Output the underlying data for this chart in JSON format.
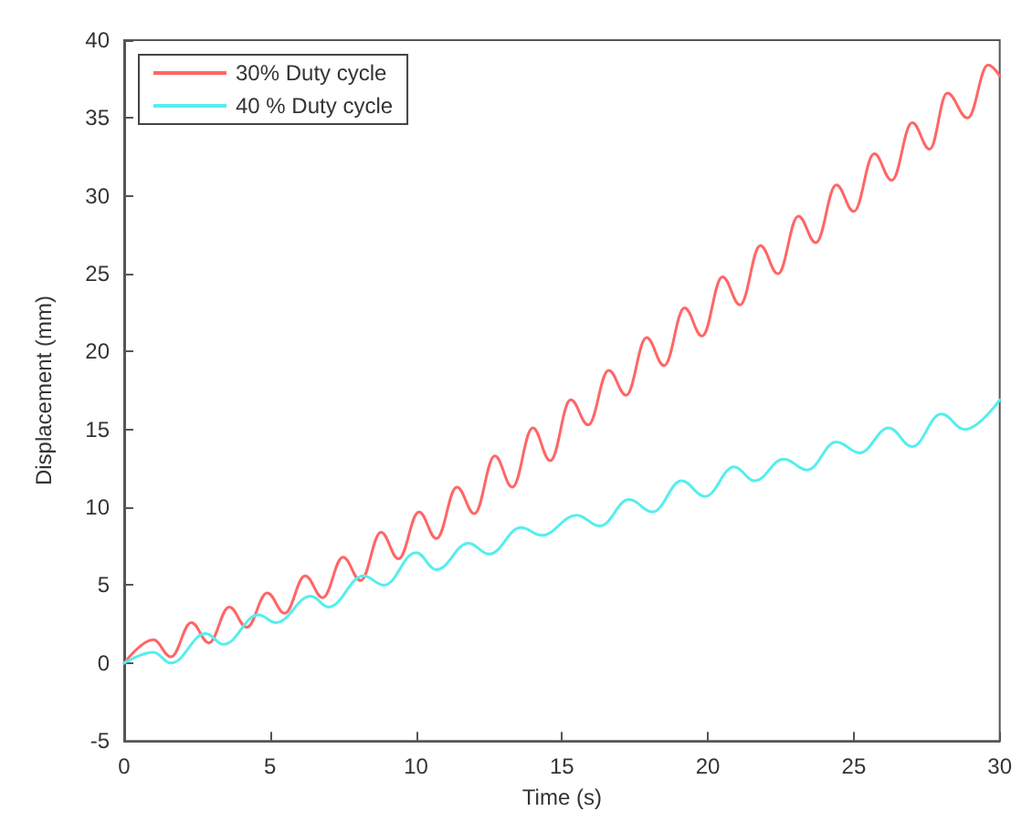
{
  "chart_data": {
    "type": "line",
    "xlabel": "Time (s)",
    "ylabel": "Displacement (mm)",
    "xlim": [
      0,
      30
    ],
    "xticks": [
      0,
      5,
      10,
      15,
      20,
      25,
      30
    ],
    "ylim": [
      -5,
      40
    ],
    "yticks": [
      -5,
      0,
      5,
      10,
      15,
      20,
      25,
      30,
      35,
      40
    ],
    "grid": false,
    "legend": "top left",
    "marker": "none",
    "line_style": "solid",
    "series": [
      {
        "name": "30% Duty cycle",
        "color": "#ff6666",
        "x": [
          0,
          1.0,
          1.6,
          2.3,
          2.9,
          3.6,
          4.2,
          4.9,
          5.5,
          6.2,
          6.8,
          7.5,
          8.1,
          8.8,
          9.4,
          10.1,
          10.7,
          11.4,
          12.0,
          12.7,
          13.3,
          14.0,
          14.6,
          15.3,
          15.9,
          16.6,
          17.2,
          17.9,
          18.5,
          19.2,
          19.8,
          20.5,
          21.1,
          21.8,
          22.4,
          23.1,
          23.7,
          24.4,
          25.0,
          25.7,
          26.3,
          27.0,
          27.6,
          28.2,
          28.9,
          29.6,
          30
        ],
        "values": [
          0,
          1.5,
          0.4,
          2.6,
          1.3,
          3.6,
          2.3,
          4.5,
          3.2,
          5.6,
          4.2,
          6.8,
          5.3,
          8.4,
          6.7,
          9.7,
          8.0,
          11.3,
          9.6,
          13.3,
          11.3,
          15.1,
          13.0,
          16.9,
          15.3,
          18.8,
          17.2,
          20.9,
          19.1,
          22.8,
          21.0,
          24.8,
          23.0,
          26.8,
          25.0,
          28.7,
          27.0,
          30.7,
          29.0,
          32.7,
          31.0,
          34.7,
          33.0,
          36.6,
          35.0,
          38.4,
          37.7
        ]
      },
      {
        "name": "40 % Duty cycle",
        "color": "#55eeee",
        "x": [
          0,
          1.0,
          1.6,
          2.8,
          3.4,
          4.6,
          5.2,
          6.4,
          7.0,
          8.2,
          8.9,
          10.0,
          10.7,
          11.8,
          12.5,
          13.6,
          14.3,
          15.5,
          16.3,
          17.3,
          18.1,
          19.1,
          19.9,
          20.9,
          21.6,
          22.6,
          23.4,
          24.4,
          25.2,
          26.2,
          27.0,
          28.0,
          28.8,
          30
        ],
        "values": [
          0,
          0.7,
          0.0,
          1.9,
          1.2,
          3.1,
          2.6,
          4.3,
          3.6,
          5.6,
          5.0,
          7.1,
          6.0,
          7.7,
          7.0,
          8.7,
          8.2,
          9.5,
          8.8,
          10.5,
          9.7,
          11.7,
          10.7,
          12.6,
          11.7,
          13.1,
          12.4,
          14.2,
          13.5,
          15.1,
          13.9,
          16.0,
          15.0,
          16.9
        ]
      }
    ]
  }
}
